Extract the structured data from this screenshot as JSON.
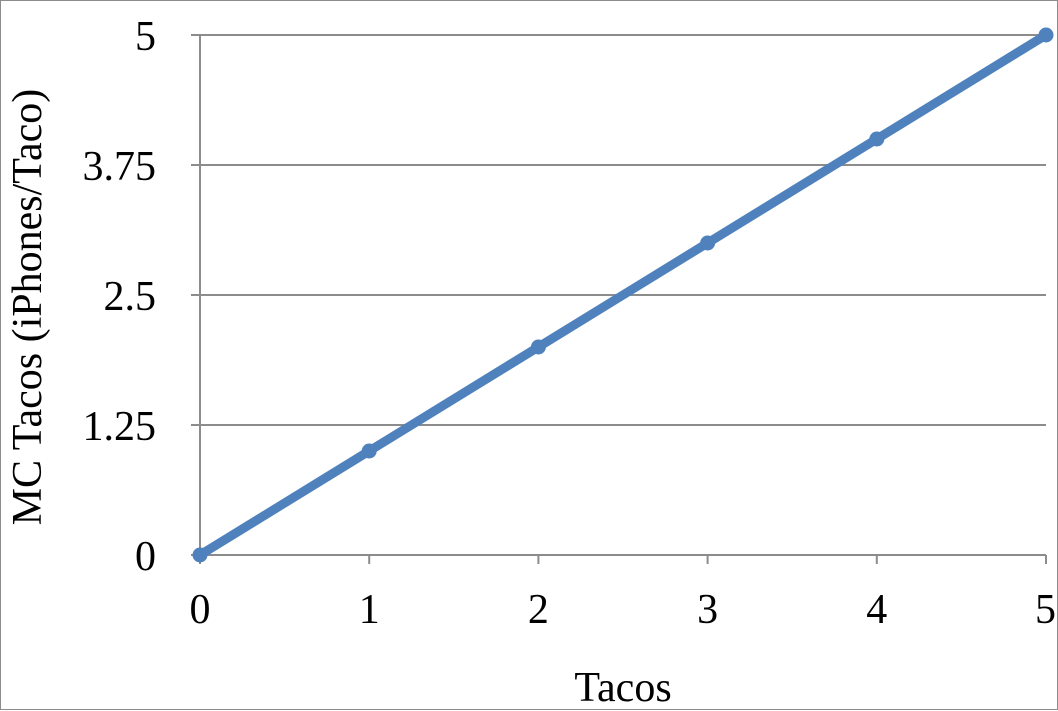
{
  "chart_data": {
    "type": "line",
    "title": "",
    "xlabel": "Tacos",
    "ylabel": "MC Tacos (iPhones/Taco)",
    "x": [
      0,
      1,
      2,
      3,
      4,
      5
    ],
    "series": [
      {
        "values": [
          0,
          1,
          2,
          3,
          4,
          5
        ],
        "color": "#4f81bd"
      }
    ],
    "xlim": [
      0,
      5
    ],
    "ylim": [
      0,
      5
    ],
    "x_ticks": [
      "0",
      "1",
      "2",
      "3",
      "4",
      "5"
    ],
    "y_ticks": [
      "0",
      "1.25",
      "2.5",
      "3.75",
      "5"
    ],
    "y_tick_values": [
      0,
      1.25,
      2.5,
      3.75,
      5
    ],
    "grid": "horizontal",
    "legend": "none",
    "markers": true
  }
}
